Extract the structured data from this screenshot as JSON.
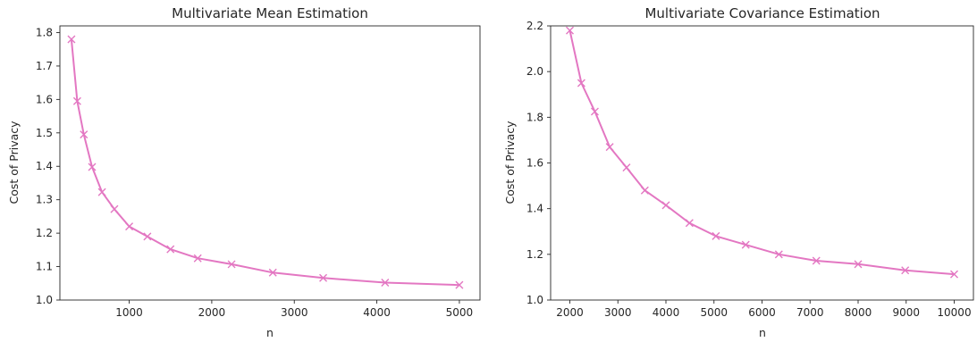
{
  "chart_data": [
    {
      "type": "line",
      "title": "Multivariate Mean Estimation",
      "xlabel": "n",
      "ylabel": "Cost of Privacy",
      "xlim": [
        160,
        5250
      ],
      "ylim": [
        1.0,
        1.82
      ],
      "xticks": [
        1000,
        2000,
        3000,
        4000,
        5000
      ],
      "yticks": [
        1.0,
        1.1,
        1.2,
        1.3,
        1.4,
        1.5,
        1.6,
        1.7,
        1.8
      ],
      "xtick_labels": [
        "1000",
        "2000",
        "3000",
        "4000",
        "5000"
      ],
      "ytick_labels": [
        "1.0",
        "1.1",
        "1.2",
        "1.3",
        "1.4",
        "1.5",
        "1.6",
        "1.7",
        "1.8"
      ],
      "grid": false,
      "color": "#e377c2",
      "marker": "x",
      "x": [
        300,
        370,
        450,
        550,
        670,
        820,
        1000,
        1220,
        1500,
        1830,
        2240,
        2740,
        3350,
        4100,
        5000
      ],
      "y": [
        1.78,
        1.595,
        1.495,
        1.398,
        1.323,
        1.272,
        1.22,
        1.19,
        1.152,
        1.125,
        1.107,
        1.082,
        1.066,
        1.052,
        1.045
      ]
    },
    {
      "type": "line",
      "title": "Multivariate Covariance Estimation",
      "xlabel": "n",
      "ylabel": "Cost of Privacy",
      "xlim": [
        1600,
        10400
      ],
      "ylim": [
        1.0,
        2.2
      ],
      "xticks": [
        2000,
        3000,
        4000,
        5000,
        6000,
        7000,
        8000,
        9000,
        10000
      ],
      "yticks": [
        1.0,
        1.2,
        1.4,
        1.6,
        1.8,
        2.0,
        2.2
      ],
      "xtick_labels": [
        "2000",
        "3000",
        "4000",
        "5000",
        "6000",
        "7000",
        "8000",
        "9000",
        "10000"
      ],
      "ytick_labels": [
        "1.0",
        "1.2",
        "1.4",
        "1.6",
        "1.8",
        "2.0",
        "2.2"
      ],
      "grid": false,
      "color": "#e377c2",
      "marker": "x",
      "x": [
        2000,
        2240,
        2520,
        2830,
        3180,
        3560,
        4000,
        4490,
        5040,
        5660,
        6350,
        7130,
        8000,
        8980,
        10000
      ],
      "y": [
        2.18,
        1.95,
        1.825,
        1.67,
        1.58,
        1.48,
        1.415,
        1.337,
        1.28,
        1.242,
        1.2,
        1.172,
        1.157,
        1.13,
        1.113
      ]
    }
  ]
}
